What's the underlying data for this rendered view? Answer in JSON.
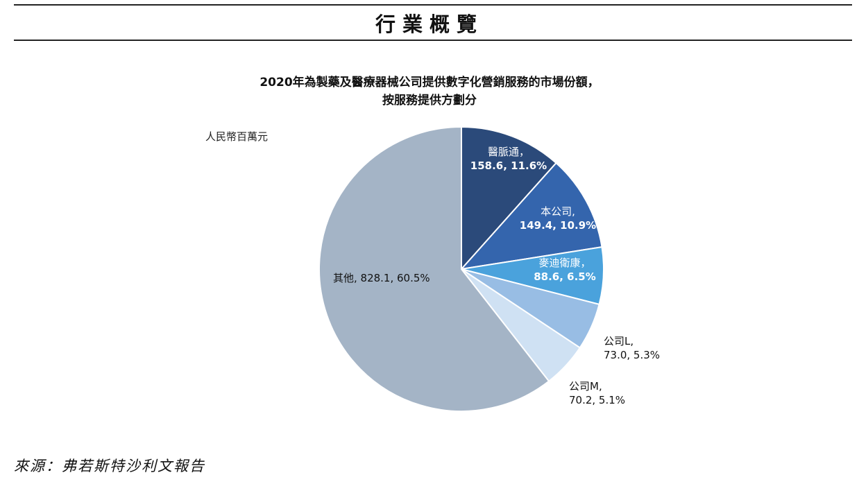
{
  "page": {
    "section_title": "行業概覽",
    "source": "來源：弗若斯特沙利文報告"
  },
  "chart_data": {
    "type": "pie",
    "title_line1": "2020年為製藥及醫療器械公司提供數字化營銷服務的市場份額，",
    "title_line2": "按服務提供方劃分",
    "unit": "人民幣百萬元",
    "slices": [
      {
        "name": "醫脈通，",
        "value": 158.6,
        "percent": 11.6,
        "value_text": "158.6, 11.6%",
        "color": "#2b4a7a"
      },
      {
        "name": "本公司,",
        "value": 149.4,
        "percent": 10.9,
        "value_text": "149.4, 10.9%",
        "color": "#3465ad"
      },
      {
        "name": "麥迪衛康，",
        "value": 88.6,
        "percent": 6.5,
        "value_text": "88.6, 6.5%",
        "color": "#4aa2dc"
      },
      {
        "name": "公司L,",
        "value": 73.0,
        "percent": 5.3,
        "value_text": "73.0, 5.3%",
        "color": "#98bde4"
      },
      {
        "name": "公司M,",
        "value": 70.2,
        "percent": 5.1,
        "value_text": "70.2, 5.1%",
        "color": "#cfe1f3"
      },
      {
        "name": "其他",
        "value": 828.1,
        "percent": 60.5,
        "value_text": "828.1, 60.5%",
        "color": "#a4b4c6"
      }
    ],
    "start_angle": "12 o'clock",
    "direction": "clockwise"
  }
}
